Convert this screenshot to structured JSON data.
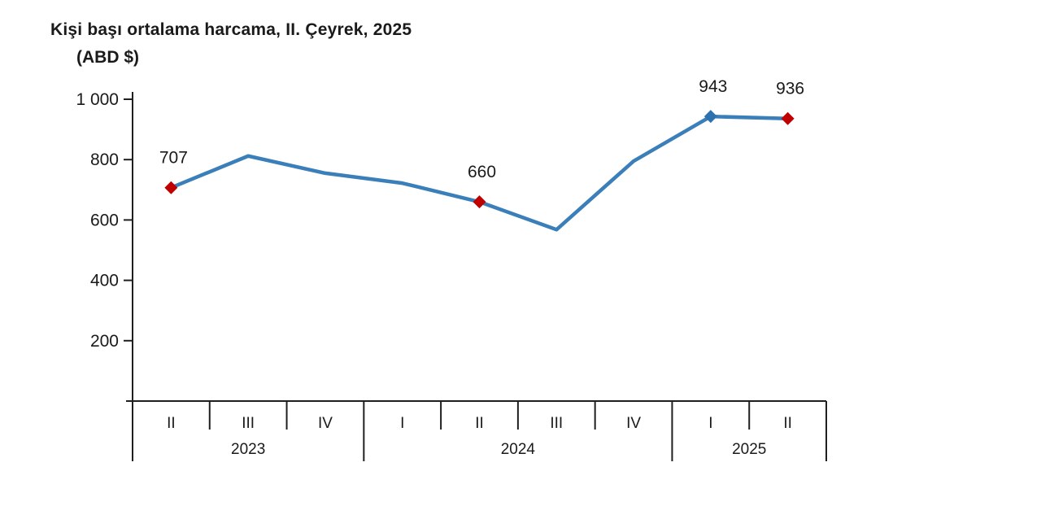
{
  "page": {
    "title": "Kişi başı ortalama harcama, II. Çeyrek, 2025",
    "subtitle": "(ABD $)"
  },
  "chart_data": {
    "type": "line",
    "title": "Kişi başı ortalama harcama, II. Çeyrek, 2025",
    "unit_label": "(ABD $)",
    "grid": false,
    "legend": "none",
    "ylim": [
      0,
      1000
    ],
    "yticks": [
      200,
      400,
      600,
      800,
      1000
    ],
    "ytick_labels": [
      "200",
      "400",
      "600",
      "800",
      "1 000"
    ],
    "x_groups": [
      {
        "year": "2023",
        "quarters": [
          "II",
          "III",
          "IV"
        ]
      },
      {
        "year": "2024",
        "quarters": [
          "I",
          "II",
          "III",
          "IV"
        ]
      },
      {
        "year": "2025",
        "quarters": [
          "I",
          "II"
        ]
      }
    ],
    "series": [
      {
        "name": "Kişi başı ortalama harcama (ABD $)",
        "points": [
          {
            "x": "2023-II",
            "value": 707,
            "label": "707",
            "marker": "red-diamond"
          },
          {
            "x": "2023-III",
            "value": 812
          },
          {
            "x": "2023-IV",
            "value": 755
          },
          {
            "x": "2024-I",
            "value": 722
          },
          {
            "x": "2024-II",
            "value": 660,
            "label": "660",
            "marker": "red-diamond"
          },
          {
            "x": "2024-III",
            "value": 568
          },
          {
            "x": "2024-IV",
            "value": 795
          },
          {
            "x": "2025-I",
            "value": 943,
            "label": "943",
            "marker": "blue-diamond"
          },
          {
            "x": "2025-II",
            "value": 936,
            "label": "936",
            "marker": "red-diamond"
          }
        ]
      }
    ],
    "colors": {
      "line": "#3a7fba",
      "marker_red": "#c00000",
      "marker_blue": "#2d72ae",
      "axis": "#1f1f1f",
      "text": "#1a1a1a"
    }
  }
}
